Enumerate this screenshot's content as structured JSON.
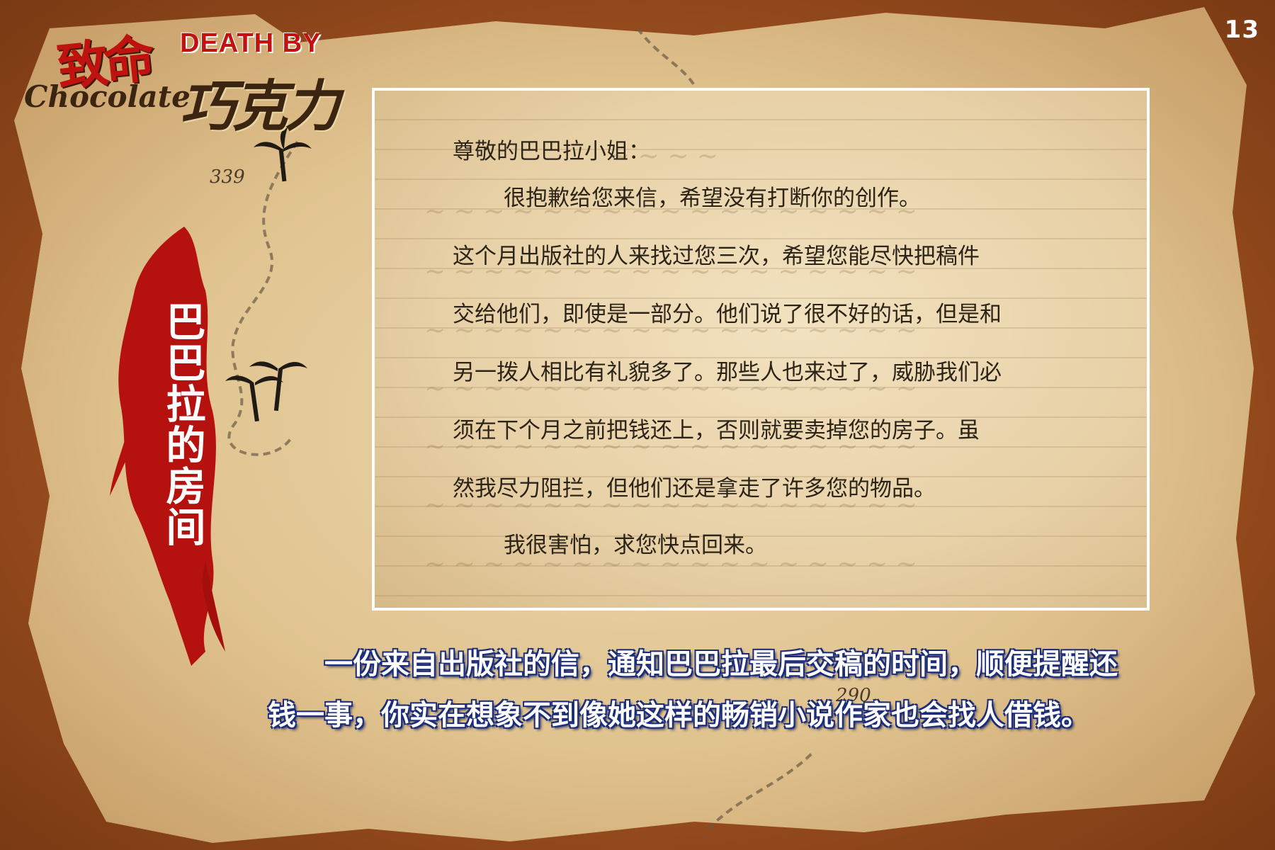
{
  "page_number": "13",
  "logo": {
    "cn_top": "致命",
    "en_top": "DEATH BY",
    "en_bottom": "Chocolate",
    "cn_bottom": "巧克力"
  },
  "map_labels": {
    "label_339": "339",
    "label_290": "290"
  },
  "side_title": "巴巴拉的房间",
  "letter": {
    "salutation": "尊敬的巴巴拉小姐：",
    "lines": [
      "很抱歉给您来信，希望没有打断你的创作。",
      "这个月出版社的人来找过您三次，希望您能尽快把稿件",
      "交给他们，即使是一部分。他们说了很不好的话，但是和",
      "另一拨人相比有礼貌多了。那些人也来过了，威胁我们必",
      "须在下个月之前把钱还上，否则就要卖掉您的房子。虽",
      "然我尽力阻拦，但他们还是拿走了许多您的物品。",
      "我很害怕，求您快点回来。"
    ]
  },
  "caption": {
    "line1": "一份来自出版社的信，通知巴巴拉最后交稿的时间，顺便提醒还",
    "line2": "钱一事，你实在想象不到像她这样的畅销小说作家也会找人借钱。"
  },
  "colors": {
    "frame_brown": "#9c4f1f",
    "parchment": "#e8d2a6",
    "banner_red": "#b5120f",
    "caption_outline": "#1a2c7a"
  }
}
